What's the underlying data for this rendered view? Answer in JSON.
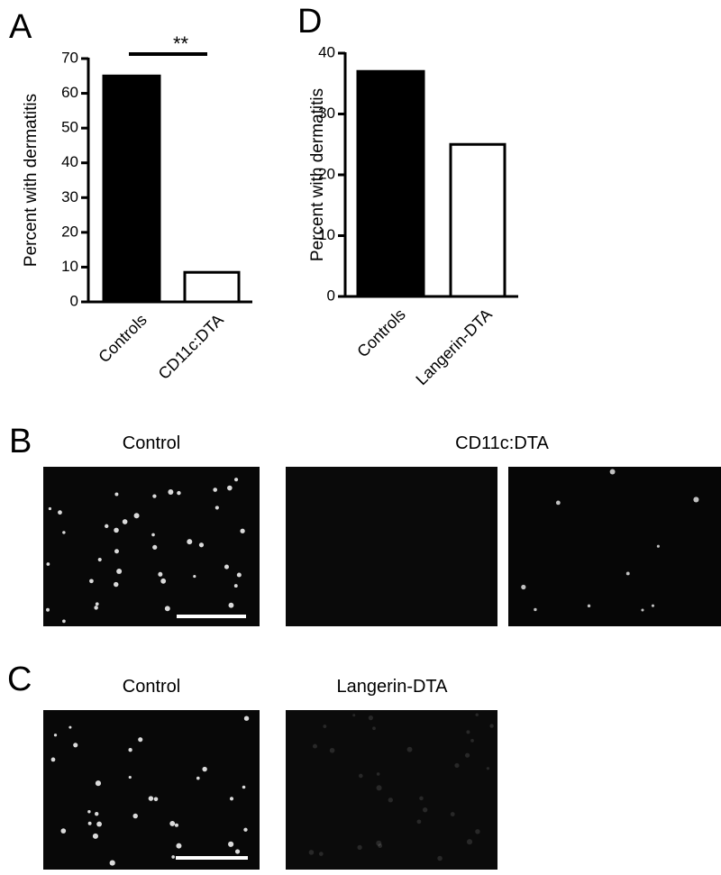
{
  "chart_data": [
    {
      "type": "bar",
      "panel_label": "A",
      "ylabel": "Percent with dermatitis",
      "categories": [
        "Controls",
        "CD11c:DTA"
      ],
      "values": [
        65,
        8.5
      ],
      "colors": [
        "#000000",
        "#ffffff"
      ],
      "edge_color": "#000000",
      "ylim": [
        0,
        70
      ],
      "yticks": [
        0,
        10,
        20,
        30,
        40,
        50,
        60,
        70
      ],
      "annotation": "**"
    },
    {
      "type": "bar",
      "panel_label": "D",
      "ylabel": "Percent with dermatitis",
      "categories": [
        "Controls",
        "Langerin-DTA"
      ],
      "values": [
        37,
        25
      ],
      "colors": [
        "#000000",
        "#ffffff"
      ],
      "edge_color": "#000000",
      "ylim": [
        0,
        40
      ],
      "yticks": [
        0,
        10,
        20,
        30,
        40
      ]
    }
  ],
  "image_panels": [
    {
      "panel_label": "B",
      "titles": [
        "Control",
        "CD11c:DTA"
      ]
    },
    {
      "panel_label": "C",
      "titles": [
        "Control",
        "Langerin-DTA"
      ]
    }
  ]
}
